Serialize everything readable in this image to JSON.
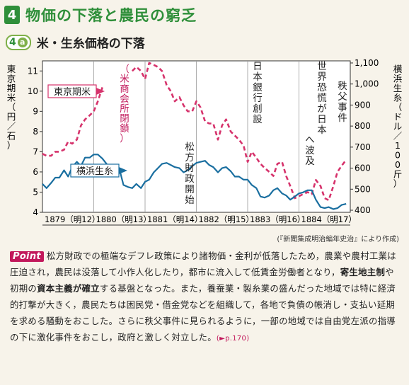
{
  "section": {
    "number": "4",
    "title": "物価の下落と農民の窮乏"
  },
  "subsection": {
    "badge_number": "4",
    "badge_letter": "a",
    "title": "米・生糸価格の下落"
  },
  "source_note": "(『新聞集成明治編年史治』により作成)",
  "point": {
    "badge": "Point",
    "seg1": "松方財政での極端なデフレ政策により諸物価・金利が低落したため，農業や農村工業は圧迫され，農民は没落して小作人化したり，都市に流入して低賃金労働者となり，",
    "bold1": "寄生地主制",
    "seg2": "や初期の",
    "bold2": "資本主義が確立",
    "seg3": "する基盤となった。また，養蚕業・製糸業の盛んだった地域では特に経済的打撃が大きく，農民たちは困民党・借金党などを組織して，各地で負債の帳消し・支払い延期を求める騒動をおこした。さらに秩父事件に見られるように，一部の地域では自由党左派の指導の下に激化事件をおこし，政府と激しく対立した。",
    "ref": "(►p.170)"
  },
  "chart_data": {
    "type": "line",
    "x_labels": [
      "1879（明12）",
      "1880（明13）",
      "1881（明14）",
      "1882（明15）",
      "1883（明16）",
      "1884（明17）"
    ],
    "x_range": [
      1879,
      1885
    ],
    "left_axis": {
      "label": "東京期米（円／石）",
      "ticks": [
        4,
        5,
        6,
        7,
        8,
        9,
        10,
        11
      ],
      "range": [
        4,
        11.5
      ]
    },
    "right_axis": {
      "label": "横浜生糸（ドル／100斤）",
      "ticks": [
        400,
        500,
        600,
        700,
        800,
        900,
        1000,
        1100
      ],
      "range": [
        390,
        1110
      ]
    },
    "series": [
      {
        "name": "東京期米",
        "axis": "left",
        "color": "#d6336c",
        "style": "dashed",
        "x": [
          1879.0,
          1879.08,
          1879.17,
          1879.25,
          1879.33,
          1879.42,
          1879.5,
          1879.58,
          1879.67,
          1879.75,
          1879.83,
          1879.92,
          1880.0,
          1880.08,
          1880.17,
          1880.25,
          1880.33,
          1880.42,
          1880.5,
          1880.58,
          1880.67,
          1880.75,
          1880.83,
          1880.92,
          1881.0,
          1881.08,
          1881.17,
          1881.25,
          1881.33,
          1881.42,
          1881.5,
          1881.58,
          1881.67,
          1881.75,
          1881.83,
          1881.92,
          1882.0,
          1882.08,
          1882.17,
          1882.25,
          1882.33,
          1882.42,
          1882.5,
          1882.58,
          1882.67,
          1882.75,
          1882.83,
          1882.92,
          1883.0,
          1883.08,
          1883.17,
          1883.25,
          1883.33,
          1883.42,
          1883.5,
          1883.58,
          1883.67,
          1883.75,
          1883.83,
          1883.92,
          1884.0,
          1884.08,
          1884.17,
          1884.25,
          1884.33,
          1884.42,
          1884.5,
          1884.58,
          1884.67,
          1884.75,
          1884.83,
          1884.92
        ],
        "y": [
          6.9,
          6.8,
          6.8,
          7.0,
          7.0,
          7.1,
          7.5,
          7.4,
          7.6,
          8.3,
          8.6,
          8.8,
          9.0,
          9.5,
          10.2,
          null,
          null,
          null,
          null,
          null,
          null,
          11.0,
          11.2,
          11.0,
          10.6,
          11.4,
          11.3,
          11.2,
          11.0,
          10.3,
          10.0,
          9.5,
          9.7,
          9.3,
          9.0,
          9.0,
          9.5,
          9.2,
          8.5,
          8.4,
          8.4,
          7.6,
          8.3,
          8.6,
          8.0,
          7.8,
          7.6,
          7.3,
          6.5,
          7.0,
          6.7,
          6.4,
          6.2,
          6.0,
          5.8,
          6.4,
          6.5,
          5.8,
          5.3,
          4.7,
          4.8,
          4.9,
          5.0,
          4.9,
          5.6,
          5.3,
          4.7,
          4.6,
          5.3,
          6.0,
          6.3,
          6.6
        ]
      },
      {
        "name": "横浜生糸",
        "axis": "right",
        "color": "#1a6fa0",
        "style": "solid",
        "x": [
          1879.0,
          1879.08,
          1879.17,
          1879.25,
          1879.33,
          1879.42,
          1879.5,
          1879.58,
          1879.67,
          1879.75,
          1879.83,
          1879.92,
          1880.0,
          1880.08,
          1880.17,
          1880.25,
          1880.33,
          1880.42,
          1880.5,
          1880.58,
          1880.67,
          1880.75,
          1880.83,
          1880.92,
          1881.0,
          1881.08,
          1881.17,
          1881.25,
          1881.33,
          1881.42,
          1881.5,
          1881.58,
          1881.67,
          1881.75,
          1881.83,
          1881.92,
          1882.0,
          1882.08,
          1882.17,
          1882.25,
          1882.33,
          1882.42,
          1882.5,
          1882.58,
          1882.67,
          1882.75,
          1882.83,
          1882.92,
          1883.0,
          1883.08,
          1883.17,
          1883.25,
          1883.33,
          1883.42,
          1883.5,
          1883.58,
          1883.67,
          1883.75,
          1883.83,
          1883.92,
          1884.0,
          1884.08,
          1884.17,
          1884.25,
          1884.33,
          1884.42,
          1884.5,
          1884.58,
          1884.67,
          1884.75,
          1884.83,
          1884.92
        ],
        "y": [
          525,
          505,
          530,
          555,
          555,
          590,
          560,
          605,
          630,
          610,
          650,
          650,
          665,
          665,
          645,
          620,
          600,
          590,
          595,
          520,
          510,
          505,
          525,
          505,
          535,
          545,
          580,
          600,
          620,
          625,
          615,
          605,
          600,
          580,
          590,
          610,
          625,
          630,
          635,
          615,
          605,
          580,
          600,
          605,
          585,
          560,
          560,
          545,
          545,
          520,
          505,
          465,
          460,
          470,
          495,
          505,
          480,
          470,
          450,
          465,
          480,
          485,
          495,
          495,
          450,
          415,
          410,
          415,
          405,
          410,
          425,
          430
        ]
      }
    ],
    "annotations": [
      "（米商会所閉鎖）",
      "日本銀行創設",
      "世界恐慌が日本へ波及",
      "秩父事件",
      "松方財政開始"
    ]
  }
}
